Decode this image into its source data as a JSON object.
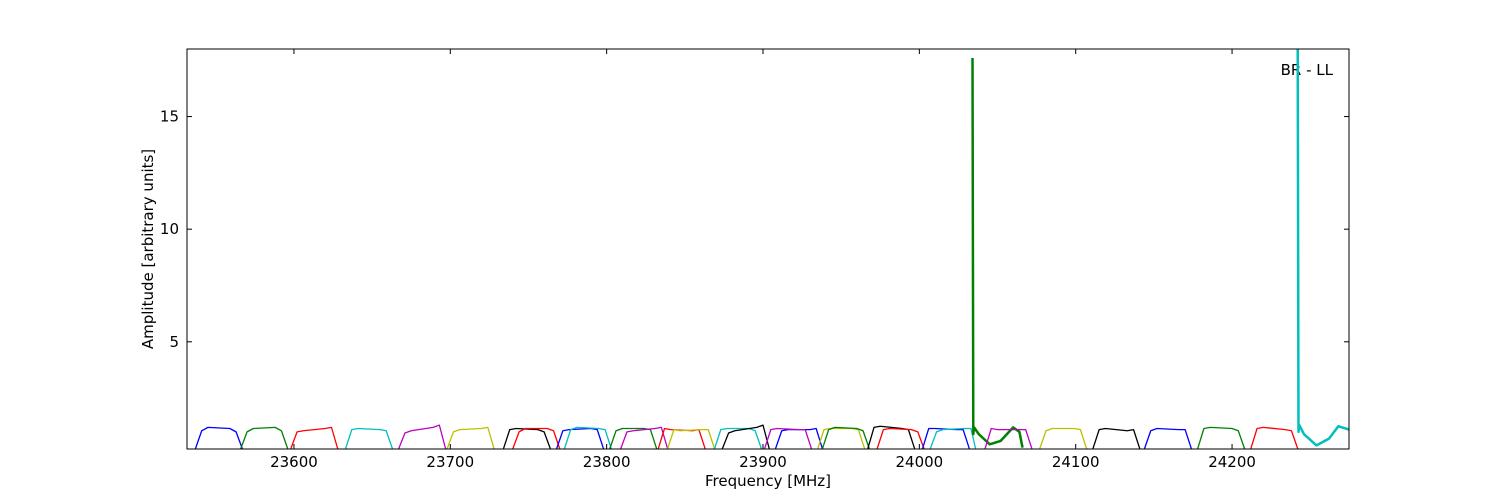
{
  "chart_data": {
    "type": "line",
    "xlabel": "Frequency [MHz]",
    "ylabel": "Amplitude [arbitrary units]",
    "annotation": "BR - LL",
    "xlim": [
      23531.6,
      24274.8
    ],
    "ylim": [
      0.24,
      18.0
    ],
    "xticks": [
      23600,
      23700,
      23800,
      23900,
      24000,
      24100,
      24200
    ],
    "yticks": [
      5,
      10,
      15
    ],
    "series": [
      {
        "color": "#0000ff",
        "x": [
          23537,
          23541,
          23545,
          23559,
          23563,
          23567
        ],
        "values": [
          0.25,
          1.05,
          1.2,
          1.15,
          1.0,
          0.25
        ]
      },
      {
        "color": "#008000",
        "x": [
          23566,
          23570,
          23574,
          23588,
          23592,
          23596
        ],
        "values": [
          0.25,
          1.0,
          1.15,
          1.2,
          1.05,
          0.25
        ]
      },
      {
        "color": "#ff0000",
        "x": [
          23598,
          23602,
          23606,
          23620,
          23624,
          23628
        ],
        "values": [
          0.25,
          1.0,
          1.05,
          1.15,
          1.2,
          0.25
        ]
      },
      {
        "color": "#00bfbf",
        "x": [
          23633,
          23637,
          23641,
          23655,
          23659,
          23663
        ],
        "values": [
          0.25,
          1.1,
          1.15,
          1.1,
          1.05,
          0.25
        ]
      },
      {
        "color": "#bf00bf",
        "x": [
          23667,
          23671,
          23675,
          23689,
          23693,
          23697
        ],
        "values": [
          0.25,
          0.95,
          1.05,
          1.2,
          1.3,
          0.25
        ]
      },
      {
        "color": "#bfbf00",
        "x": [
          23698,
          23702,
          23706,
          23720,
          23724,
          23728
        ],
        "values": [
          0.25,
          1.0,
          1.1,
          1.15,
          1.2,
          0.25
        ]
      },
      {
        "color": "#000000",
        "x": [
          23734,
          23738,
          23742,
          23756,
          23760,
          23764
        ],
        "values": [
          0.25,
          1.1,
          1.15,
          1.1,
          1.0,
          0.25
        ]
      },
      {
        "color": "#ff0000",
        "x": [
          23740,
          23744,
          23748,
          23762,
          23766,
          23770
        ],
        "values": [
          0.25,
          1.0,
          1.15,
          1.15,
          1.05,
          0.25
        ]
      },
      {
        "color": "#0000ff",
        "x": [
          23768,
          23772,
          23776,
          23790,
          23794,
          23798
        ],
        "values": [
          0.25,
          1.05,
          1.1,
          1.15,
          1.1,
          0.25
        ]
      },
      {
        "color": "#00bfbf",
        "x": [
          23773,
          23777,
          23781,
          23795,
          23799,
          23803
        ],
        "values": [
          0.25,
          1.1,
          1.2,
          1.15,
          1.1,
          0.25
        ]
      },
      {
        "color": "#008000",
        "x": [
          23802,
          23806,
          23810,
          23824,
          23828,
          23832
        ],
        "values": [
          0.25,
          1.05,
          1.15,
          1.15,
          1.1,
          0.25
        ]
      },
      {
        "color": "#bf00bf",
        "x": [
          23809,
          23813,
          23817,
          23831,
          23835,
          23839
        ],
        "values": [
          0.25,
          1.0,
          1.05,
          1.15,
          1.2,
          0.25
        ]
      },
      {
        "color": "#ff0000",
        "x": [
          23833,
          23837,
          23841,
          23855,
          23859,
          23863
        ],
        "values": [
          0.25,
          1.15,
          1.1,
          1.05,
          1.1,
          0.25
        ]
      },
      {
        "color": "#bfbf00",
        "x": [
          23839,
          23843,
          23847,
          23861,
          23865,
          23869
        ],
        "values": [
          0.25,
          1.1,
          1.05,
          1.1,
          1.1,
          0.25
        ]
      },
      {
        "color": "#00bfbf",
        "x": [
          23869,
          23873,
          23877,
          23891,
          23895,
          23899
        ],
        "values": [
          0.25,
          1.1,
          1.15,
          1.15,
          1.05,
          0.25
        ]
      },
      {
        "color": "#000000",
        "x": [
          23874,
          23878,
          23882,
          23896,
          23900,
          23904
        ],
        "values": [
          0.25,
          0.95,
          1.05,
          1.2,
          1.3,
          0.25
        ]
      },
      {
        "color": "#0000ff",
        "x": [
          23908,
          23912,
          23916,
          23930,
          23934,
          23938
        ],
        "values": [
          0.25,
          1.05,
          1.1,
          1.1,
          1.15,
          0.25
        ]
      },
      {
        "color": "#bf00bf",
        "x": [
          23901,
          23905,
          23909,
          23923,
          23927,
          23931
        ],
        "values": [
          0.25,
          1.1,
          1.15,
          1.1,
          1.1,
          0.25
        ]
      },
      {
        "color": "#bfbf00",
        "x": [
          23935,
          23939,
          23943,
          23957,
          23961,
          23965
        ],
        "values": [
          0.25,
          1.1,
          1.15,
          1.15,
          1.1,
          0.25
        ]
      },
      {
        "color": "#008000",
        "x": [
          23938,
          23942,
          23946,
          23960,
          23964,
          23968
        ],
        "values": [
          0.25,
          1.1,
          1.2,
          1.15,
          1.05,
          0.25
        ]
      },
      {
        "color": "#000000",
        "x": [
          23967,
          23971,
          23975,
          23989,
          23993,
          23997
        ],
        "values": [
          0.25,
          1.2,
          1.25,
          1.15,
          1.1,
          0.25
        ]
      },
      {
        "color": "#ff0000",
        "x": [
          23973,
          23977,
          23981,
          23995,
          23999,
          24003
        ],
        "values": [
          0.25,
          1.1,
          1.15,
          1.1,
          1.0,
          0.25
        ]
      },
      {
        "color": "#0000ff",
        "x": [
          24002,
          24006,
          24010,
          24024,
          24028,
          24032
        ],
        "values": [
          0.25,
          1.15,
          1.15,
          1.1,
          1.1,
          0.25
        ]
      },
      {
        "color": "#00bfbf",
        "x": [
          24007,
          24011,
          24015,
          24029,
          24033,
          24036
        ],
        "values": [
          0.25,
          1.0,
          1.1,
          1.15,
          1.15,
          0.25
        ]
      },
      {
        "color": "#008000",
        "x": [
          24034,
          24034.5,
          24035,
          24038,
          24045,
          24052,
          24060,
          24064,
          24066
        ],
        "values": [
          17.6,
          0.9,
          1.2,
          0.9,
          0.45,
          0.6,
          1.2,
          1.0,
          0.3
        ]
      },
      {
        "color": "#bf00bf",
        "x": [
          24042,
          24046,
          24050,
          24064,
          24068,
          24072
        ],
        "values": [
          0.25,
          1.15,
          1.1,
          1.1,
          1.1,
          0.25
        ]
      },
      {
        "color": "#bfbf00",
        "x": [
          24077,
          24081,
          24085,
          24099,
          24103,
          24107
        ],
        "values": [
          0.25,
          1.05,
          1.15,
          1.15,
          1.1,
          0.25
        ]
      },
      {
        "color": "#000000",
        "x": [
          24111,
          24115,
          24119,
          24133,
          24137,
          24141
        ],
        "values": [
          0.25,
          1.1,
          1.15,
          1.05,
          1.1,
          0.25
        ]
      },
      {
        "color": "#0000ff",
        "x": [
          24144,
          24148,
          24152,
          24166,
          24170,
          24174
        ],
        "values": [
          0.25,
          1.05,
          1.15,
          1.1,
          1.1,
          0.25
        ]
      },
      {
        "color": "#008000",
        "x": [
          24178,
          24182,
          24186,
          24200,
          24204,
          24208
        ],
        "values": [
          0.25,
          1.15,
          1.2,
          1.15,
          1.05,
          0.25
        ]
      },
      {
        "color": "#ff0000",
        "x": [
          24212,
          24216,
          24220,
          24234,
          24238,
          24242
        ],
        "values": [
          0.25,
          1.15,
          1.2,
          1.1,
          1.05,
          0.25
        ]
      },
      {
        "color": "#00bfbf",
        "x": [
          24242,
          24242.5,
          24243,
          24246,
          24254,
          24262,
          24268,
          24275
        ],
        "values": [
          18.0,
          1.0,
          1.3,
          0.9,
          0.4,
          0.7,
          1.25,
          1.1
        ]
      }
    ]
  }
}
